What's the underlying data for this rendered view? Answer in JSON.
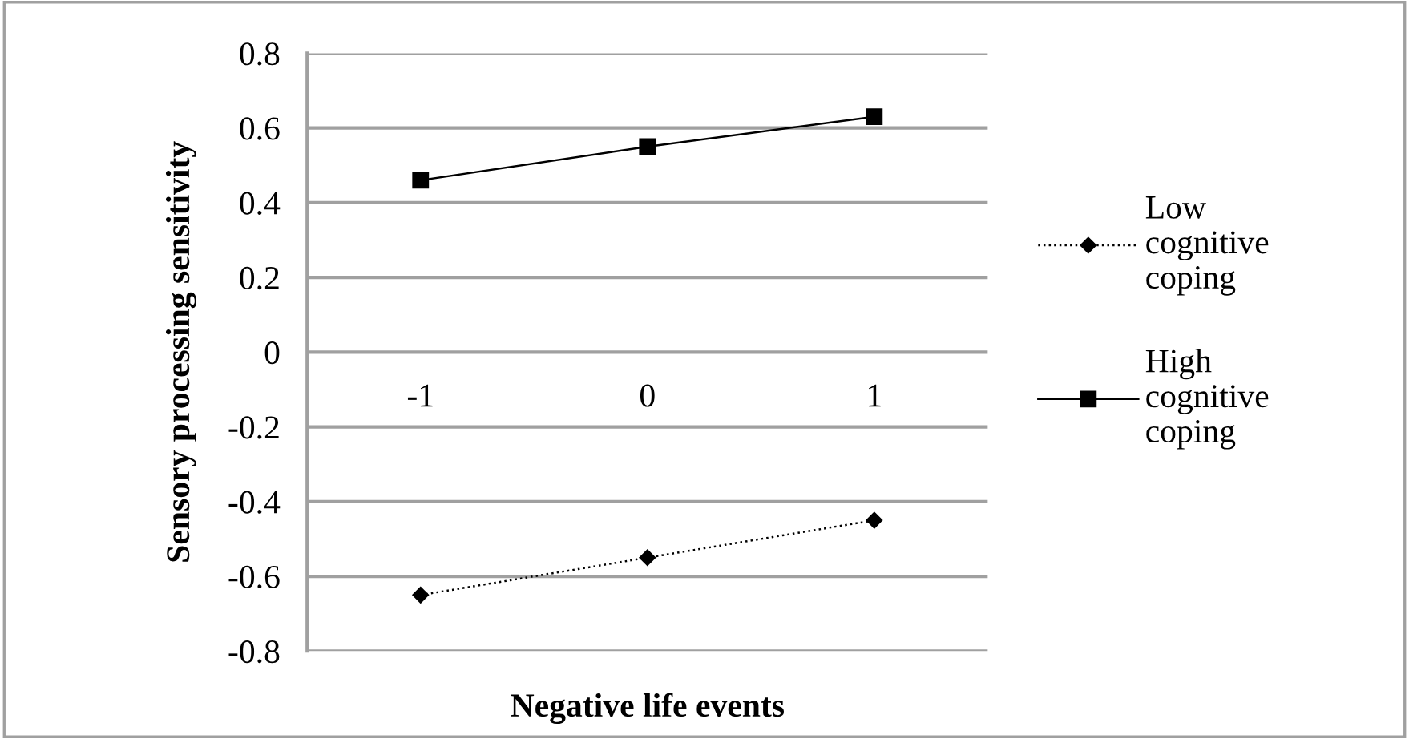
{
  "chart_data": {
    "type": "line",
    "xlabel": "Negative life events",
    "ylabel": "Sensory processing sensitivity",
    "categories": [
      "-1",
      "0",
      "1"
    ],
    "series": [
      {
        "name": "Low cognitive coping",
        "color": "#000000",
        "values": [
          -0.65,
          -0.55,
          -0.45
        ],
        "marker": "diamond",
        "line_style": "dotted"
      },
      {
        "name": "High cognitive coping",
        "color": "#000000",
        "values": [
          0.46,
          0.55,
          0.63
        ],
        "marker": "square",
        "line_style": "solid"
      }
    ],
    "ylim": [
      -0.8,
      0.8
    ],
    "yticks": [
      -0.8,
      -0.6,
      -0.4,
      -0.2,
      0,
      0.2,
      0.4,
      0.6,
      0.8
    ],
    "grid": "y",
    "legend": "right"
  }
}
